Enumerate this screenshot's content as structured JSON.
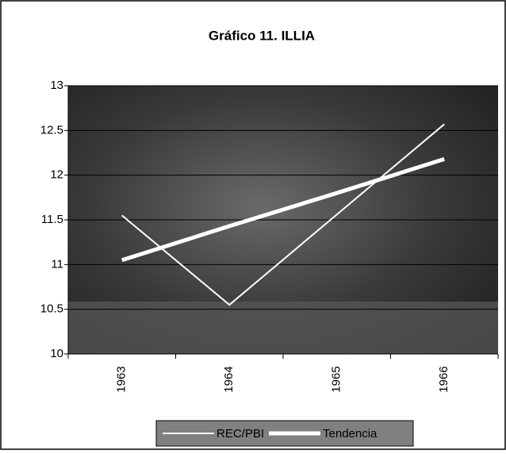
{
  "chart_data": {
    "type": "line",
    "title": "Gráfico 11. ILLIA",
    "categories": [
      "1963",
      "1964",
      "1965",
      "1966"
    ],
    "series": [
      {
        "name": "REC/PBI",
        "color": "#ffffff",
        "width": 2,
        "values": [
          11.55,
          10.55,
          11.56,
          12.57
        ]
      },
      {
        "name": "Tendencia",
        "color": "#ffffff",
        "width": 5,
        "values": [
          11.05,
          11.43,
          11.8,
          12.18
        ]
      }
    ],
    "ylim": [
      10,
      13
    ],
    "yticks": [
      10,
      10.5,
      11,
      11.5,
      12,
      12.5,
      13
    ],
    "grid": true,
    "legend": "bottom"
  }
}
